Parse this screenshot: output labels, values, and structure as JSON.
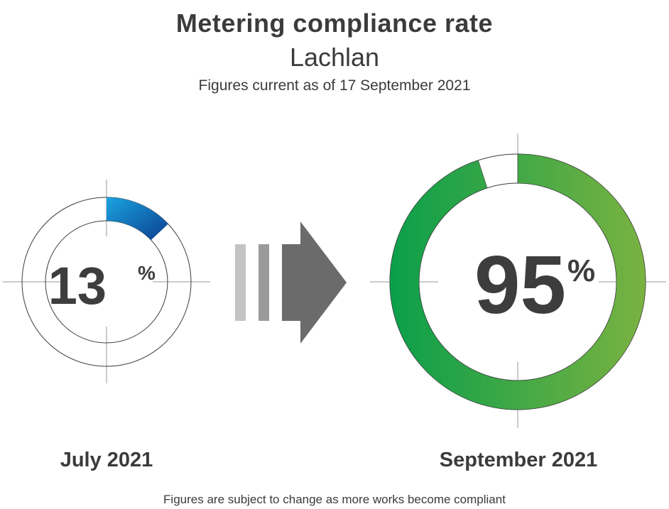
{
  "title": "Metering compliance rate",
  "subtitle": "Lachlan",
  "as_of": "Figures current as of 17 September 2021",
  "footnote": "Figures are subject to change as more works become compliant",
  "chart_data": [
    {
      "type": "donut",
      "label": "July 2021",
      "value": 13,
      "unit": "%",
      "colors": [
        "#1aa3e0",
        "#0b3f8f"
      ]
    },
    {
      "type": "donut",
      "label": "September 2021",
      "value": 95,
      "unit": "%",
      "colors": [
        "#0a9f4a",
        "#7ab241"
      ]
    }
  ],
  "arrow": {
    "bar_colors": [
      "#c4c4c4",
      "#9b9b9b"
    ],
    "head_color": "#6b6b6b"
  }
}
